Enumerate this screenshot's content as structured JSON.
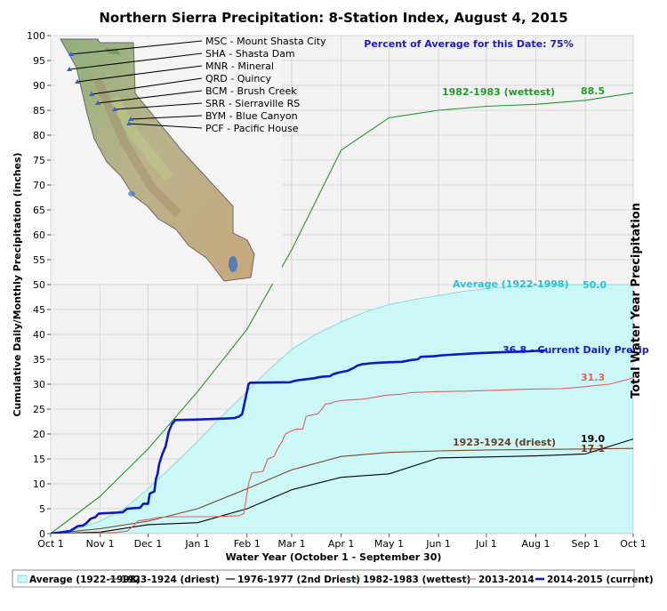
{
  "chart_data": {
    "type": "line",
    "title": "Northern Sierra Precipitation: 8-Station Index, August 4, 2015",
    "subtitle": "Percent of Average for this Date: 75%",
    "xlabel": "Water Year (October 1 - September 30)",
    "ylabel": "Cumulative Daily/Monthly Precipitation (inches)",
    "right_label": "Total Water Year Precipitation",
    "xlim": [
      0,
      365
    ],
    "ylim": [
      0,
      100
    ],
    "ytick_step": 5,
    "x_ticks": [
      {
        "label": "Oct 1",
        "x": 0
      },
      {
        "label": "Nov 1",
        "x": 31
      },
      {
        "label": "Dec 1",
        "x": 61
      },
      {
        "label": "Jan 1",
        "x": 92
      },
      {
        "label": "Feb 1",
        "x": 123
      },
      {
        "label": "Mar 1",
        "x": 151
      },
      {
        "label": "Apr 1",
        "x": 182
      },
      {
        "label": "May 1",
        "x": 212
      },
      {
        "label": "Jun 1",
        "x": 243
      },
      {
        "label": "Jul 1",
        "x": 273
      },
      {
        "label": "Aug 1",
        "x": 304
      },
      {
        "label": "Sep 1",
        "x": 335
      },
      {
        "label": "Oct 1",
        "x": 365
      }
    ],
    "grid": true,
    "legend_position": "bottom",
    "series": [
      {
        "name": "Average (1922-1998)",
        "kind": "area",
        "color": "#ccf7f7",
        "edge": "#88dddd",
        "x": [
          0,
          15,
          31,
          46,
          61,
          76,
          92,
          107,
          123,
          137,
          151,
          166,
          182,
          197,
          212,
          228,
          243,
          258,
          273,
          289,
          304,
          320,
          335,
          350,
          365
        ],
        "y": [
          0,
          0.8,
          2.5,
          5.0,
          9.0,
          13.5,
          18.5,
          23.5,
          28.5,
          33.0,
          37.0,
          40.0,
          42.5,
          44.5,
          46.0,
          47.0,
          47.8,
          48.6,
          49.2,
          49.6,
          49.8,
          49.9,
          50.0,
          50.0,
          50.0
        ]
      },
      {
        "name": "1923-1924 (driest)",
        "kind": "line",
        "color": "#7a4a2a",
        "x": [
          0,
          31,
          61,
          92,
          123,
          151,
          182,
          212,
          243,
          273,
          304,
          335,
          365
        ],
        "y": [
          0,
          1.0,
          2.5,
          5.0,
          9.0,
          12.8,
          15.5,
          16.3,
          16.6,
          16.8,
          16.9,
          17.0,
          17.1
        ]
      },
      {
        "name": "1976-1977 (2nd Driest)",
        "kind": "line",
        "color": "#000000",
        "x": [
          0,
          31,
          61,
          92,
          123,
          151,
          182,
          212,
          243,
          273,
          304,
          335,
          365
        ],
        "y": [
          0,
          0.3,
          1.8,
          2.2,
          5.0,
          8.8,
          11.3,
          12.0,
          15.2,
          15.4,
          15.6,
          16.0,
          19.0
        ]
      },
      {
        "name": "1982-1983 (wettest)",
        "kind": "line",
        "color": "#22992a",
        "x": [
          0,
          31,
          61,
          92,
          123,
          151,
          182,
          212,
          243,
          273,
          304,
          335,
          365
        ],
        "y": [
          0,
          7.5,
          17.0,
          28.5,
          41.0,
          57.0,
          77.0,
          83.5,
          85.0,
          85.8,
          86.2,
          87.0,
          88.5
        ]
      },
      {
        "name": "2013-2014",
        "kind": "line",
        "color": "#e06060",
        "x": [
          0,
          40,
          48,
          52,
          55,
          62,
          66,
          70,
          78,
          90,
          100,
          110,
          118,
          121,
          124,
          126,
          129,
          133,
          136,
          140,
          142,
          145,
          147,
          150,
          154,
          158,
          160,
          163,
          167,
          170,
          172,
          176,
          178,
          182,
          185,
          190,
          195,
          200,
          210,
          220,
          225,
          240,
          260,
          280,
          300,
          320,
          335,
          340,
          350,
          362,
          365
        ],
        "y": [
          0,
          0.2,
          0.5,
          1.6,
          2.6,
          2.9,
          3.2,
          3.3,
          3.4,
          3.4,
          3.4,
          3.5,
          3.6,
          4.0,
          10.0,
          12.2,
          12.3,
          12.5,
          15.0,
          15.5,
          17.0,
          18.5,
          20.0,
          20.5,
          21.0,
          21.0,
          23.5,
          23.8,
          24.0,
          25.0,
          26.0,
          26.2,
          26.5,
          26.7,
          26.8,
          26.9,
          27.0,
          27.2,
          27.8,
          28.0,
          28.3,
          28.5,
          28.6,
          28.8,
          29.0,
          29.1,
          29.5,
          29.7,
          30.0,
          31.0,
          31.3
        ]
      },
      {
        "name": "2014-2015 (current)",
        "kind": "line",
        "color": "#0a18c8",
        "bold": true,
        "x": [
          0,
          12,
          17,
          20,
          22,
          25,
          28,
          30,
          34,
          40,
          45,
          48,
          52,
          56,
          58,
          61,
          62,
          65,
          66,
          67,
          68,
          70,
          72,
          74,
          76,
          78,
          90,
          100,
          110,
          115,
          118,
          120,
          123,
          124,
          125,
          150,
          152,
          155,
          160,
          165,
          168,
          170,
          175,
          177,
          180,
          183,
          186,
          188,
          190,
          192,
          195,
          198,
          200,
          205,
          210,
          220,
          225,
          230,
          232,
          240,
          245,
          255,
          265,
          280,
          290,
          300,
          305,
          310
        ],
        "y": [
          0,
          0.5,
          1.5,
          1.6,
          2.0,
          3.0,
          3.3,
          4.0,
          4.1,
          4.2,
          4.3,
          5.0,
          5.1,
          5.2,
          6.0,
          6.0,
          8.0,
          8.5,
          11.0,
          12.0,
          14.0,
          16.0,
          17.5,
          20.5,
          22.0,
          22.8,
          22.9,
          23.0,
          23.1,
          23.2,
          23.5,
          24.0,
          28.5,
          30.0,
          30.3,
          30.4,
          30.6,
          30.8,
          31.0,
          31.2,
          31.4,
          31.5,
          31.6,
          32.0,
          32.3,
          32.5,
          32.7,
          33.0,
          33.3,
          33.7,
          34.0,
          34.1,
          34.2,
          34.3,
          34.4,
          34.5,
          34.8,
          35.0,
          35.5,
          35.6,
          35.8,
          36.0,
          36.2,
          36.4,
          36.5,
          36.6,
          36.7,
          36.8
        ]
      }
    ],
    "annotations": {
      "wettest_label": "1982-1983 (wettest)",
      "wettest_value": "88.5",
      "average_label": "Average (1922-1998)",
      "average_value": "50.0",
      "current_label": "36.8 - Current Daily Precip",
      "value_2013_2014": "31.3",
      "driest_label": "1923-1924 (driest)",
      "value_1976_1977": "19.0",
      "value_1923_1924": "17.1"
    },
    "legend": [
      {
        "label": "Average (1922-1998)",
        "color": "#ccf7f7",
        "style": "area"
      },
      {
        "label": "1923-1924 (driest)",
        "color": "#7a4a2a",
        "style": "line"
      },
      {
        "label": "1976-1977 (2nd Driest)",
        "color": "#000000",
        "style": "line"
      },
      {
        "label": "1982-1983 (wettest)",
        "color": "#22992a",
        "style": "line"
      },
      {
        "label": "2013-2014",
        "color": "#e06060",
        "style": "line"
      },
      {
        "label": "2014-2015 (current)",
        "color": "#0a18c8",
        "style": "bold-line"
      }
    ],
    "stations": [
      "MSC - Mount Shasta City",
      "SHA - Shasta Dam",
      "MNR - Mineral",
      "QRD - Quincy",
      "BCM - Brush Creek",
      "SRR - Sierraville RS",
      "BYM - Blue Canyon",
      "PCF - Pacific House"
    ]
  }
}
